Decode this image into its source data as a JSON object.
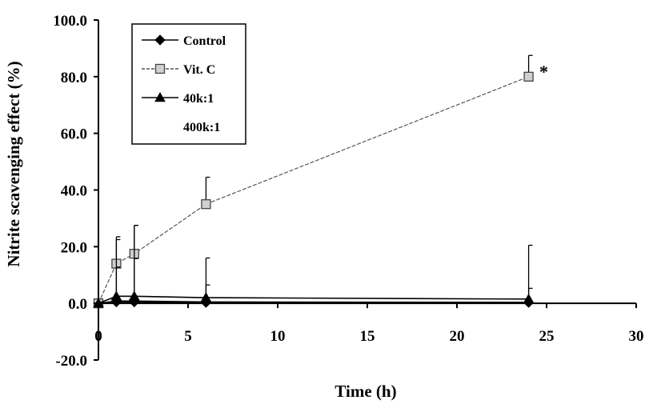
{
  "chart_data": {
    "type": "line",
    "xlabel": "Time (h)",
    "ylabel": "Nitrite scavenging effect (%)",
    "xlim": [
      0,
      30
    ],
    "ylim": [
      -20,
      100
    ],
    "x_ticks": [
      0,
      5,
      10,
      15,
      20,
      25,
      30
    ],
    "x_tick_labels": [
      "0",
      "5",
      "10",
      "15",
      "20",
      "25",
      "30"
    ],
    "y_ticks": [
      -20,
      0,
      20,
      40,
      60,
      80,
      100
    ],
    "y_tick_labels": [
      "-20.0",
      "0.0",
      "20.0",
      "40.0",
      "60.0",
      "80.0",
      "100.0"
    ],
    "grid": false,
    "legend_position": "top-left",
    "series": [
      {
        "name": "Control",
        "marker": "diamond",
        "color": "#000000",
        "x": [
          0,
          1,
          2,
          6,
          24
        ],
        "y": [
          0,
          0.5,
          0.5,
          0.3,
          0.3
        ],
        "err": [
          0,
          0,
          0,
          0,
          0
        ]
      },
      {
        "name": "Vit. C",
        "marker": "square",
        "color": "#555555",
        "x": [
          0,
          1,
          2,
          6,
          24
        ],
        "y": [
          0,
          14,
          17.5,
          35,
          80
        ],
        "err": [
          0,
          9.5,
          10,
          9.5,
          7.5
        ]
      },
      {
        "name": "40k:1",
        "marker": "triangle",
        "color": "#000000",
        "x": [
          0,
          1,
          2,
          6,
          24
        ],
        "y": [
          0,
          2.5,
          2.5,
          2,
          1.5
        ],
        "err": [
          0,
          20,
          25,
          14,
          19
        ]
      },
      {
        "name": "400k:1",
        "marker": "none",
        "color": "#000000",
        "x": [
          0,
          1,
          2,
          6,
          24
        ],
        "y": [
          0,
          0.8,
          0.8,
          0.5,
          0.3
        ],
        "err": [
          0,
          12,
          15,
          6,
          5
        ]
      }
    ],
    "annotations": [
      {
        "text": "*",
        "x": 24.6,
        "y": 82
      }
    ]
  }
}
